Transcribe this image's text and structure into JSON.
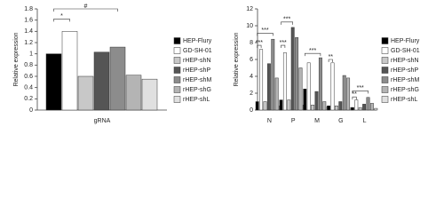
{
  "chart_data": [
    {
      "type": "bar",
      "y_label": "Relative expression",
      "categories": [
        "gRNA"
      ],
      "series": [
        {
          "name": "HEP-Flury",
          "color": "#000000",
          "values": [
            1.0
          ]
        },
        {
          "name": "GD-SH-01",
          "color": "#ffffff",
          "values": [
            1.4
          ]
        },
        {
          "name": "rHEP-shN",
          "color": "#c8c8c8",
          "values": [
            0.6
          ]
        },
        {
          "name": "rHEP-shP",
          "color": "#555555",
          "values": [
            1.03
          ]
        },
        {
          "name": "rHEP-shM",
          "color": "#8c8c8c",
          "values": [
            1.12
          ]
        },
        {
          "name": "rHEP-shG",
          "color": "#b4b4b4",
          "values": [
            0.62
          ]
        },
        {
          "name": "rHEP-shL",
          "color": "#e0e0e0",
          "values": [
            0.55
          ]
        }
      ],
      "ylim": [
        0,
        1.8
      ],
      "yticks": [
        0,
        0.2,
        0.4,
        0.6,
        0.8,
        1,
        1.2,
        1.4,
        1.6,
        1.8
      ],
      "annotations": [
        "*",
        "#"
      ]
    },
    {
      "type": "bar",
      "y_label": "Relative expression",
      "categories": [
        "N",
        "P",
        "M",
        "G",
        "L"
      ],
      "series": [
        {
          "name": "HEP-Flury",
          "color": "#000000",
          "values": [
            1.0,
            1.2,
            2.5,
            0.5,
            0.3
          ]
        },
        {
          "name": "GD-SH-01",
          "color": "#ffffff",
          "values": [
            7.2,
            6.8,
            5.6,
            5.6,
            1.2
          ]
        },
        {
          "name": "rHEP-shN",
          "color": "#c8c8c8",
          "values": [
            1.0,
            1.2,
            0.6,
            0.5,
            0.3
          ]
        },
        {
          "name": "rHEP-shP",
          "color": "#555555",
          "values": [
            5.5,
            9.8,
            2.2,
            1.0,
            0.7
          ]
        },
        {
          "name": "rHEP-shM",
          "color": "#8c8c8c",
          "values": [
            8.4,
            8.6,
            6.2,
            4.1,
            1.5
          ]
        },
        {
          "name": "rHEP-shG",
          "color": "#b4b4b4",
          "values": [
            3.8,
            5.0,
            1.0,
            3.8,
            0.8
          ]
        },
        {
          "name": "rHEP-shL",
          "color": "#e0e0e0",
          "values": [
            0.5,
            0.6,
            0.4,
            0.3,
            0.2
          ]
        }
      ],
      "ylim": [
        0,
        12
      ],
      "yticks": [
        0,
        2,
        4,
        6,
        8,
        10,
        12
      ],
      "annotations": [
        "***",
        "***",
        "***",
        "***",
        "***",
        "**",
        "**",
        "***"
      ]
    }
  ]
}
